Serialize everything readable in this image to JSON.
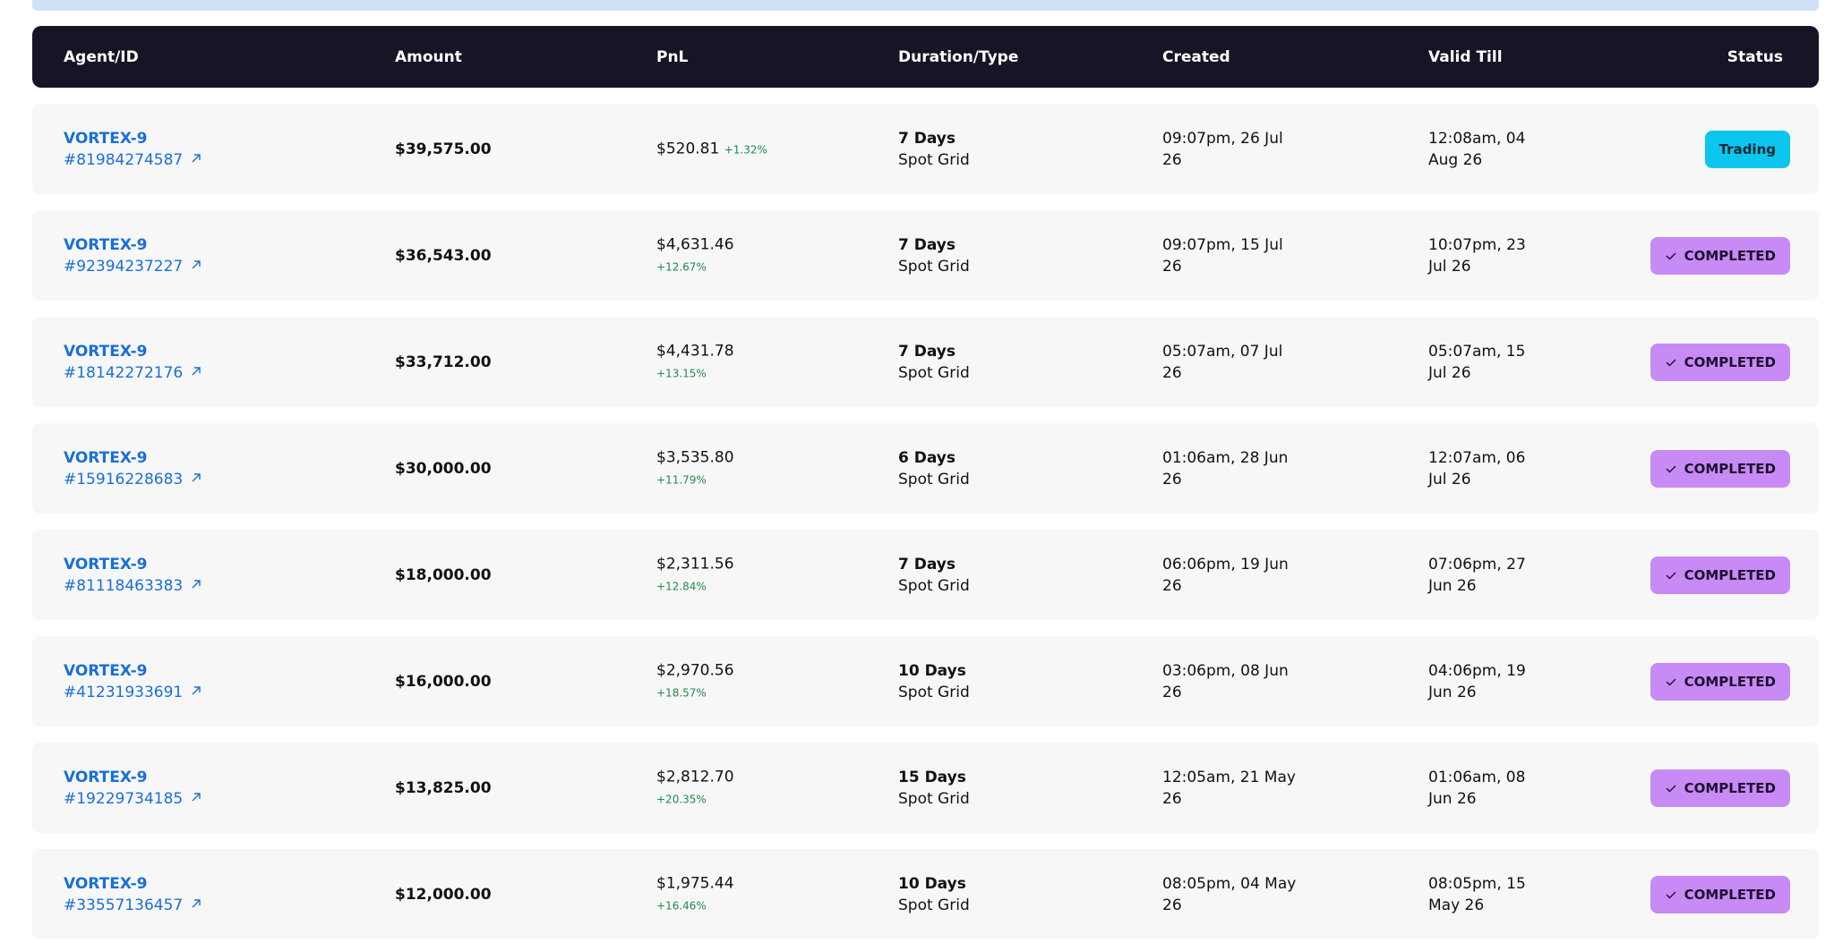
{
  "table": {
    "header": [
      "Agent/ID",
      "Amount",
      "PnL",
      "Duration/Type",
      "Created",
      "Valid Till",
      "Status"
    ],
    "rows": [
      {
        "agent": "VORTEX-9",
        "id": "#81984274587",
        "amount": "$39,575.00",
        "pnl": "$520.81",
        "pnl_pct": "+1.32%",
        "duration": "7 Days",
        "type": "Spot Grid",
        "created": "09:07pm, 26 Jul 26",
        "valid_till": "12:08am, 04 Aug 26",
        "status": "Trading"
      },
      {
        "agent": "VORTEX-9",
        "id": "#92394237227",
        "amount": "$36,543.00",
        "pnl": "$4,631.46",
        "pnl_pct": "+12.67%",
        "duration": "7 Days",
        "type": "Spot Grid",
        "created": "09:07pm, 15 Jul 26",
        "valid_till": "10:07pm, 23 Jul 26",
        "status": "COMPLETED"
      },
      {
        "agent": "VORTEX-9",
        "id": "#18142272176",
        "amount": "$33,712.00",
        "pnl": "$4,431.78",
        "pnl_pct": "+13.15%",
        "duration": "7 Days",
        "type": "Spot Grid",
        "created": "05:07am, 07 Jul 26",
        "valid_till": "05:07am, 15 Jul 26",
        "status": "COMPLETED"
      },
      {
        "agent": "VORTEX-9",
        "id": "#15916228683",
        "amount": "$30,000.00",
        "pnl": "$3,535.80",
        "pnl_pct": "+11.79%",
        "duration": "6 Days",
        "type": "Spot Grid",
        "created": "01:06am, 28 Jun 26",
        "valid_till": "12:07am, 06 Jul 26",
        "status": "COMPLETED"
      },
      {
        "agent": "VORTEX-9",
        "id": "#81118463383",
        "amount": "$18,000.00",
        "pnl": "$2,311.56",
        "pnl_pct": "+12.84%",
        "duration": "7 Days",
        "type": "Spot Grid",
        "created": "06:06pm, 19 Jun 26",
        "valid_till": "07:06pm, 27 Jun 26",
        "status": "COMPLETED"
      },
      {
        "agent": "VORTEX-9",
        "id": "#41231933691",
        "amount": "$16,000.00",
        "pnl": "$2,970.56",
        "pnl_pct": "+18.57%",
        "duration": "10 Days",
        "type": "Spot Grid",
        "created": "03:06pm, 08 Jun 26",
        "valid_till": "04:06pm, 19 Jun 26",
        "status": "COMPLETED"
      },
      {
        "agent": "VORTEX-9",
        "id": "#19229734185",
        "amount": "$13,825.00",
        "pnl": "$2,812.70",
        "pnl_pct": "+20.35%",
        "duration": "15 Days",
        "type": "Spot Grid",
        "created": "12:05am, 21 May 26",
        "valid_till": "01:06am, 08 Jun 26",
        "status": "COMPLETED"
      },
      {
        "agent": "VORTEX-9",
        "id": "#33557136457",
        "amount": "$12,000.00",
        "pnl": "$1,975.44",
        "pnl_pct": "+16.46%",
        "duration": "10 Days",
        "type": "Spot Grid",
        "created": "08:05pm, 04 May 26",
        "valid_till": "08:05pm, 15 May 26",
        "status": "COMPLETED"
      }
    ]
  }
}
